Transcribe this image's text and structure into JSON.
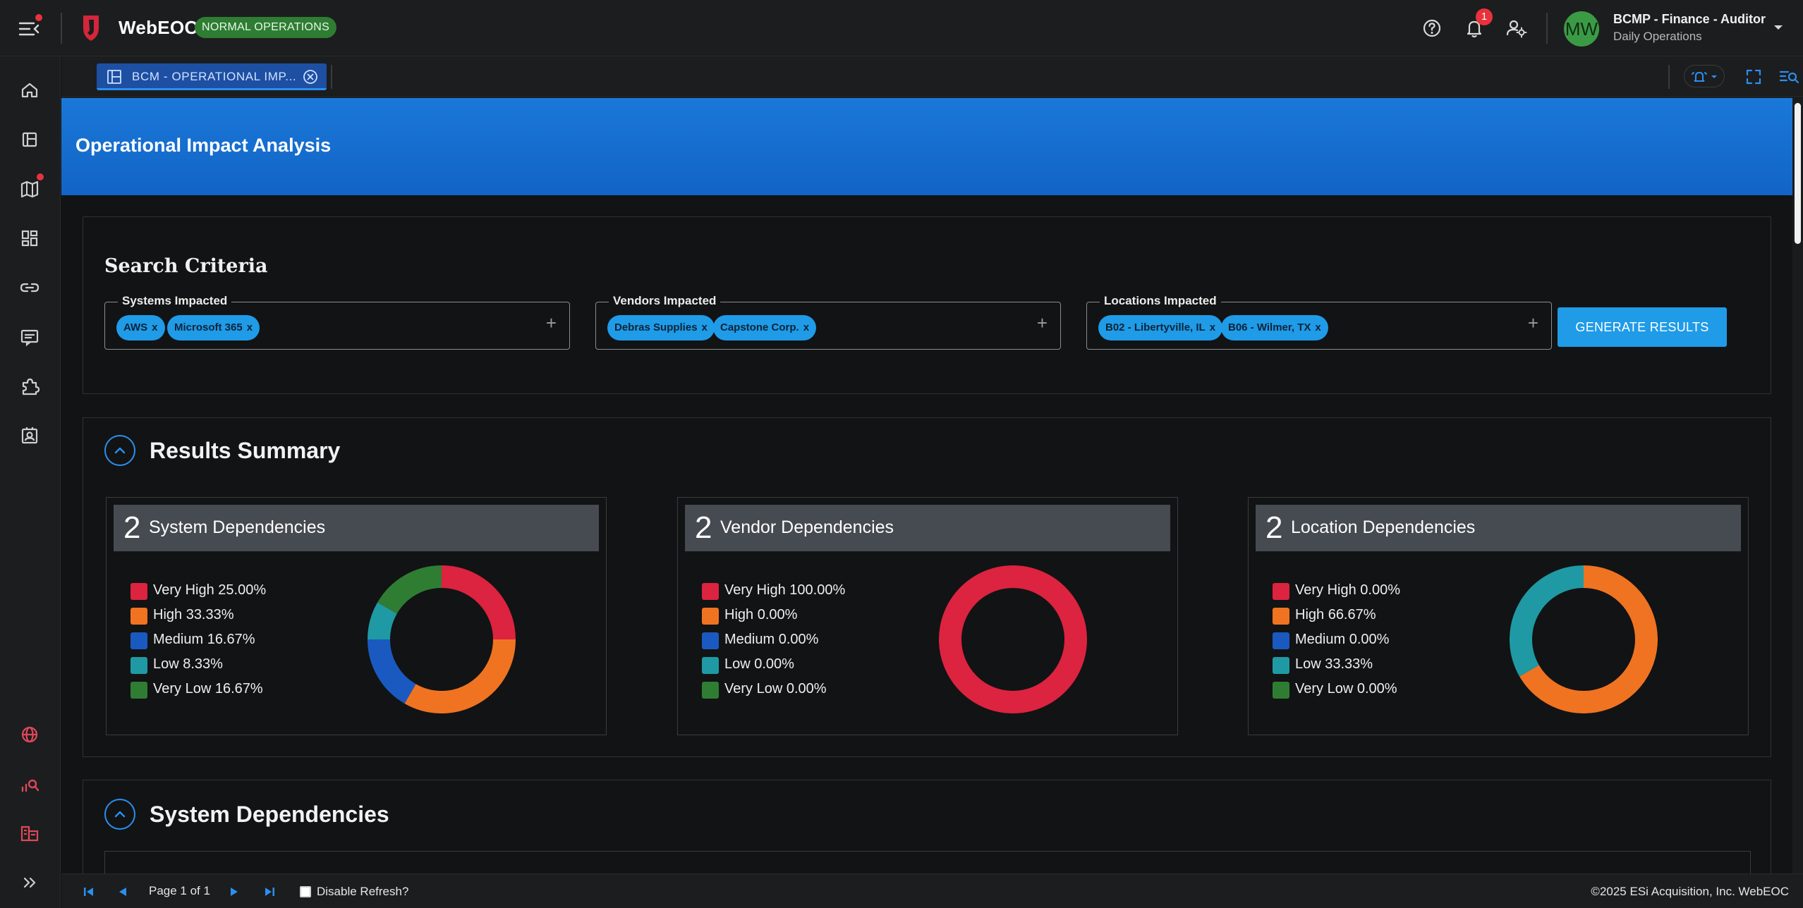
{
  "header": {
    "app_name": "WebEOC",
    "ops_status": "NORMAL OPERATIONS",
    "notification_count": "1",
    "user_name": "BCMP - Finance - Auditor",
    "user_position": "Daily Operations",
    "avatar_initials": "MW"
  },
  "tabs": [
    {
      "label": "BCM - OPERATIONAL IMP..."
    }
  ],
  "page": {
    "title": "Operational Impact Analysis"
  },
  "search": {
    "title": "Search Criteria",
    "fields": [
      {
        "legend": "Systems Impacted",
        "chips": [
          "AWS",
          "Microsoft 365"
        ]
      },
      {
        "legend": "Vendors Impacted",
        "chips": [
          "Debras Supplies",
          "Capstone Corp."
        ]
      },
      {
        "legend": "Locations Impacted",
        "chips": [
          "B02 - Libertyville, IL",
          "B06 - Wilmer, TX"
        ]
      }
    ],
    "chip_remove": "x",
    "add_symbol": "+",
    "generate_label": "GENERATE RESULTS"
  },
  "summary": {
    "title": "Results Summary",
    "cards": [
      {
        "count": "2",
        "title": "System Dependencies",
        "legend": [
          "Very High 25.00%",
          "High 33.33%",
          "Medium 16.67%",
          "Low 8.33%",
          "Very Low 16.67%"
        ],
        "values": [
          25.0,
          33.33,
          16.67,
          8.33,
          16.67
        ]
      },
      {
        "count": "2",
        "title": "Vendor Dependencies",
        "legend": [
          "Very High 100.00%",
          "High 0.00%",
          "Medium 0.00%",
          "Low 0.00%",
          "Very Low 0.00%"
        ],
        "values": [
          100.0,
          0,
          0,
          0,
          0
        ]
      },
      {
        "count": "2",
        "title": "Location Dependencies",
        "legend": [
          "Very High 0.00%",
          "High 66.67%",
          "Medium 0.00%",
          "Low 33.33%",
          "Very Low 0.00%"
        ],
        "values": [
          0,
          66.67,
          0,
          33.33,
          0
        ]
      }
    ],
    "colors": [
      "#dc2340",
      "#f07322",
      "#1a5ac0",
      "#1f9aa4",
      "#2f7d33"
    ]
  },
  "dependencies": {
    "title": "System Dependencies"
  },
  "footer": {
    "page_text": "Page 1 of 1",
    "disable_refresh_label": "Disable Refresh?",
    "copyright": "©2025 ESi Acquisition, Inc. WebEOC"
  }
}
